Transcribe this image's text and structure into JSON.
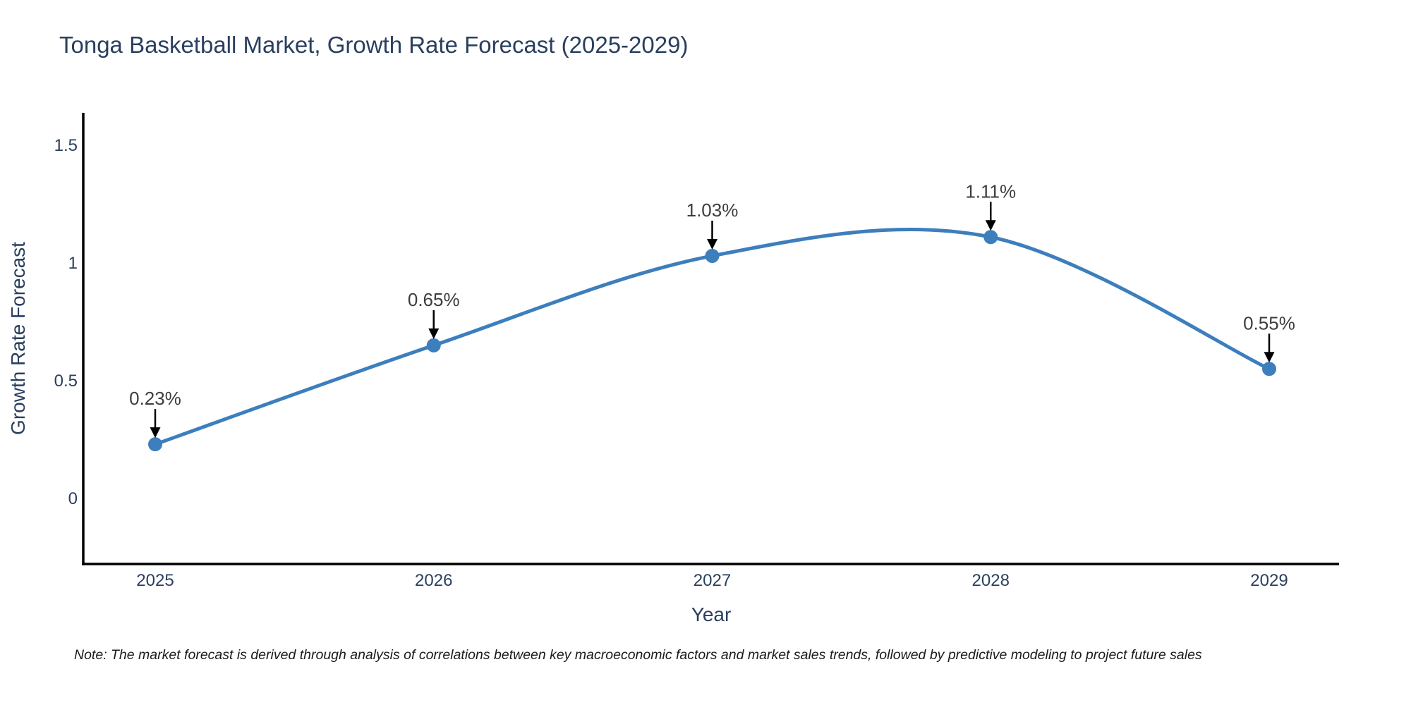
{
  "page": {
    "background": "#ffffff"
  },
  "chart_data": {
    "type": "line",
    "title": "Tonga Basketball Market, Growth Rate Forecast (2025-2029)",
    "xlabel": "Year",
    "ylabel": "Growth Rate Forecast",
    "x": [
      "2025",
      "2026",
      "2027",
      "2028",
      "2029"
    ],
    "series": [
      {
        "name": "Growth Rate Forecast",
        "values": [
          0.23,
          0.65,
          1.03,
          1.11,
          0.55
        ]
      }
    ],
    "point_labels": [
      "0.23%",
      "0.65%",
      "1.03%",
      "1.11%",
      "0.55%"
    ],
    "yticks": [
      {
        "value": 0,
        "label": "0"
      },
      {
        "value": 0.5,
        "label": "0.5"
      },
      {
        "value": 1,
        "label": "1"
      },
      {
        "value": 1.5,
        "label": "1.5"
      }
    ],
    "ylim": [
      -0.28,
      1.64
    ],
    "line_shape": "spline",
    "grid": false,
    "legend": "none",
    "line_color": "#3d7ebd",
    "marker_color": "#3d7ebd",
    "axis_color": "#000000",
    "tick_color": "#2a3f5f",
    "annotation_color": "#3d3d3d",
    "note": "Note: The market forecast is derived through analysis of correlations between key macroeconomic factors and market sales trends, followed by predictive modeling to project future sales"
  }
}
